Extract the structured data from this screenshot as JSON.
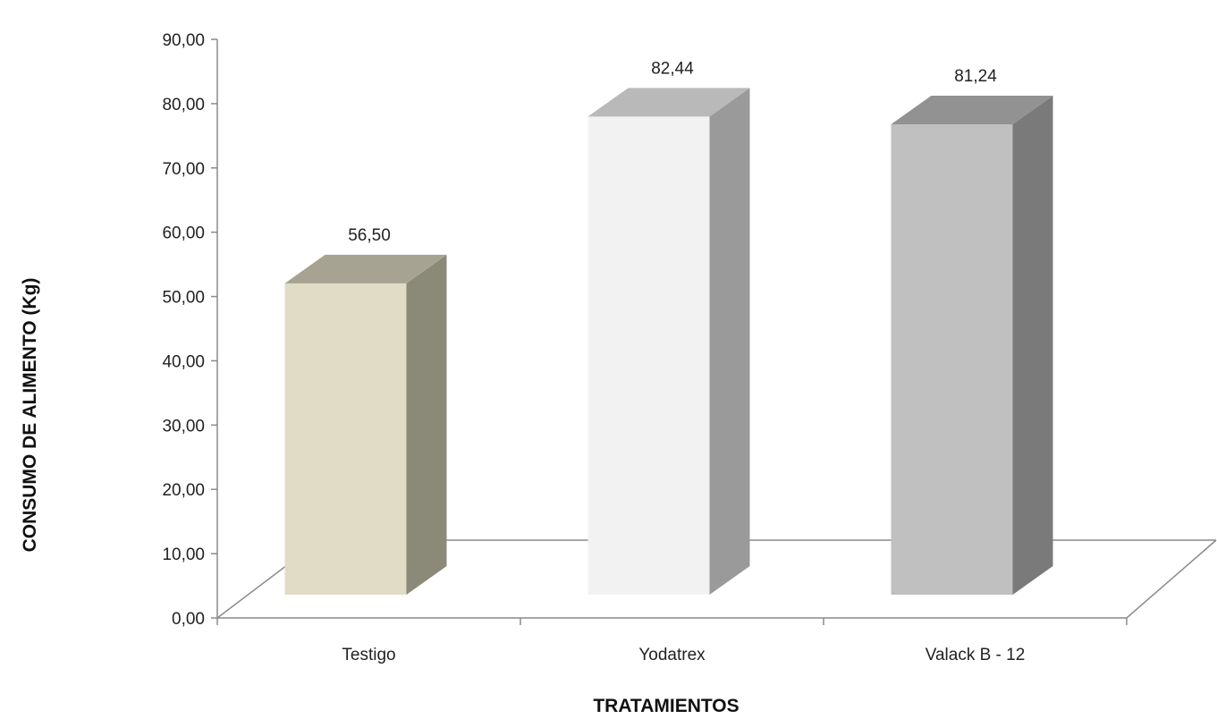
{
  "chart_data": {
    "type": "bar",
    "categories": [
      "Testigo",
      "Yodatrex",
      "Valack B - 12"
    ],
    "values": [
      56.5,
      82.44,
      81.24
    ],
    "value_labels": [
      "56,50",
      "82,44",
      "81,24"
    ],
    "title": "",
    "xlabel": "TRATAMIENTOS",
    "ylabel": "CONSUMO DE ALIMENTO (Kg)",
    "ylim": [
      0,
      90
    ],
    "yticks": [
      0,
      10,
      20,
      30,
      40,
      50,
      60,
      70,
      80,
      90
    ],
    "ytick_labels": [
      "0,00",
      "10,00",
      "20,00",
      "30,00",
      "40,00",
      "50,00",
      "60,00",
      "70,00",
      "80,00",
      "90,00"
    ],
    "grid": false,
    "legend": "none",
    "style": "3d-column",
    "bar_colors": [
      {
        "front": "#e0dcc5",
        "side": "#8b8978",
        "top": "#a7a392"
      },
      {
        "front": "#f2f2f2",
        "side": "#9a9a9a",
        "top": "#b9b9b9"
      },
      {
        "front": "#c0c0c0",
        "side": "#7a7a7a",
        "top": "#929292"
      }
    ]
  }
}
